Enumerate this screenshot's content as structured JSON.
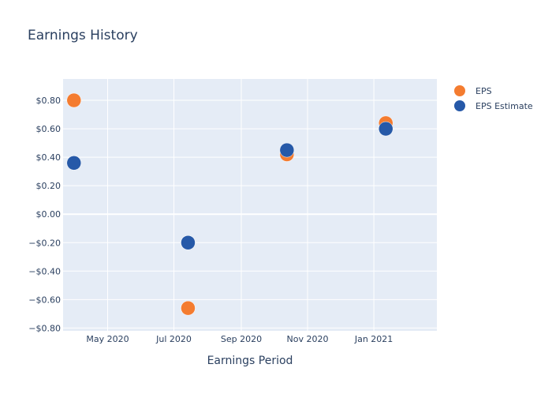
{
  "chart_data": {
    "type": "scatter",
    "title": "Earnings History",
    "xlabel": "Earnings Period",
    "ylabel": "",
    "x_ticks": [
      {
        "date": "2020-05-01",
        "label": "May 2020"
      },
      {
        "date": "2020-07-01",
        "label": "Jul 2020"
      },
      {
        "date": "2020-09-01",
        "label": "Sep 2020"
      },
      {
        "date": "2020-11-01",
        "label": "Nov 2020"
      },
      {
        "date": "2021-01-01",
        "label": "Jan 2021"
      }
    ],
    "y_ticks": [
      {
        "value": 0.8,
        "label": "$0.80"
      },
      {
        "value": 0.6,
        "label": "$0.60"
      },
      {
        "value": 0.4,
        "label": "$0.40"
      },
      {
        "value": 0.2,
        "label": "$0.20"
      },
      {
        "value": 0.0,
        "label": "$0.00"
      },
      {
        "value": -0.2,
        "label": "−$0.20"
      },
      {
        "value": -0.4,
        "label": "−$0.40"
      },
      {
        "value": -0.6,
        "label": "−$0.60"
      },
      {
        "value": -0.8,
        "label": "−$0.80"
      }
    ],
    "xlim": [
      "2020-03-21",
      "2021-02-28"
    ],
    "ylim": [
      -0.82,
      0.95
    ],
    "legend_position": "top-right",
    "grid": true,
    "series": [
      {
        "name": "EPS",
        "color": "#f47c30",
        "points": [
          {
            "x": "2020-03-31",
            "y": 0.8
          },
          {
            "x": "2020-07-14",
            "y": -0.66
          },
          {
            "x": "2020-10-13",
            "y": 0.42
          },
          {
            "x": "2021-01-12",
            "y": 0.64
          }
        ]
      },
      {
        "name": "EPS Estimate",
        "color": "#2659a8",
        "points": [
          {
            "x": "2020-03-31",
            "y": 0.36
          },
          {
            "x": "2020-07-14",
            "y": -0.2
          },
          {
            "x": "2020-10-13",
            "y": 0.45
          },
          {
            "x": "2021-01-12",
            "y": 0.6
          }
        ]
      }
    ]
  }
}
